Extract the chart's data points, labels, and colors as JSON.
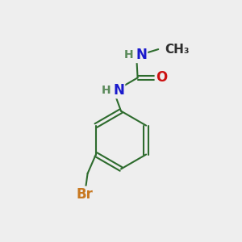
{
  "background_color": "#eeeeee",
  "bond_color": "#2d6b2d",
  "bond_width": 1.5,
  "atom_colors": {
    "N": "#1a1acc",
    "O": "#cc1111",
    "Br": "#c87820",
    "C": "#2d2d2d",
    "H": "#5a8a5a"
  },
  "figsize": [
    3.0,
    3.0
  ],
  "dpi": 100,
  "fs_main": 12,
  "fs_small": 10,
  "fs_methyl": 11
}
